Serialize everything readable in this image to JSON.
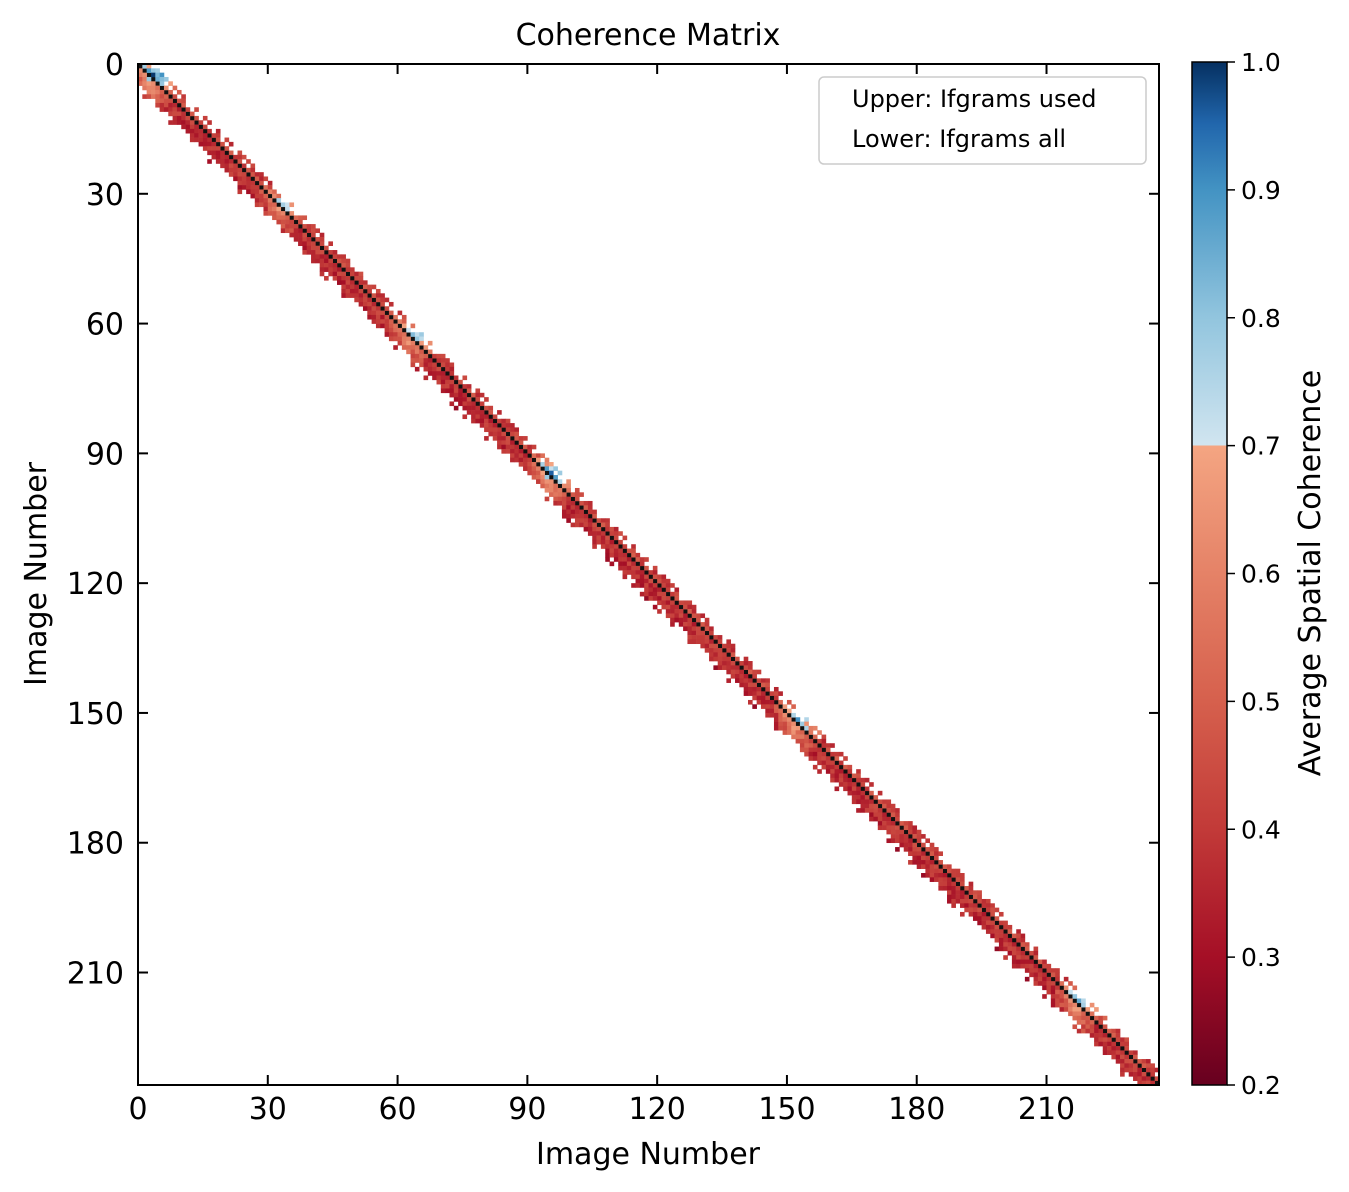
{
  "chart_data": {
    "type": "heatmap",
    "title": "Coherence Matrix",
    "xlabel": "Image Number",
    "ylabel": "Image Number",
    "xlim": [
      0,
      236
    ],
    "ylim": [
      236,
      0
    ],
    "xticks": [
      0,
      30,
      60,
      90,
      120,
      150,
      180,
      210
    ],
    "yticks": [
      0,
      30,
      60,
      90,
      120,
      150,
      180,
      210
    ],
    "n_images": 236,
    "diagonal_value": null,
    "legend": {
      "placement": "top-right",
      "entries": [
        "Upper: Ifgrams used",
        "Lower: Ifgrams all"
      ]
    },
    "colorbar": {
      "label": "Average Spatial Coherence",
      "vmin": 0.2,
      "vmax": 1.0,
      "ticks": [
        0.2,
        0.3,
        0.4,
        0.5,
        0.6,
        0.7,
        0.8,
        0.9,
        1.0
      ],
      "tick_labels": [
        "0.2",
        "0.3",
        "0.4",
        "0.5",
        "0.6",
        "0.7",
        "0.8",
        "0.9",
        "1.0"
      ],
      "colormap": "RdBu (truncated at 0.7)",
      "colors": [
        "#67001f",
        "#b2182b",
        "#d6604d",
        "#f4a582",
        "#d1e5f0",
        "#92c5de",
        "#4393c3",
        "#2166ac",
        "#053061"
      ]
    },
    "band": {
      "description": "Coherence concentrated near diagonal, bandwidth about 5 images",
      "upper_used_offsets": [
        1,
        2,
        3
      ],
      "lower_all_offsets": [
        1,
        2,
        3,
        4,
        5,
        6
      ],
      "typical_value": 0.4,
      "high_coherence_clusters": [
        {
          "center": 2,
          "value": 0.9
        },
        {
          "center": 32,
          "value": 0.72
        },
        {
          "center": 62,
          "value": 0.78
        },
        {
          "center": 94,
          "value": 0.88
        },
        {
          "center": 151,
          "value": 0.82
        },
        {
          "center": 216,
          "value": 0.8
        }
      ]
    }
  }
}
